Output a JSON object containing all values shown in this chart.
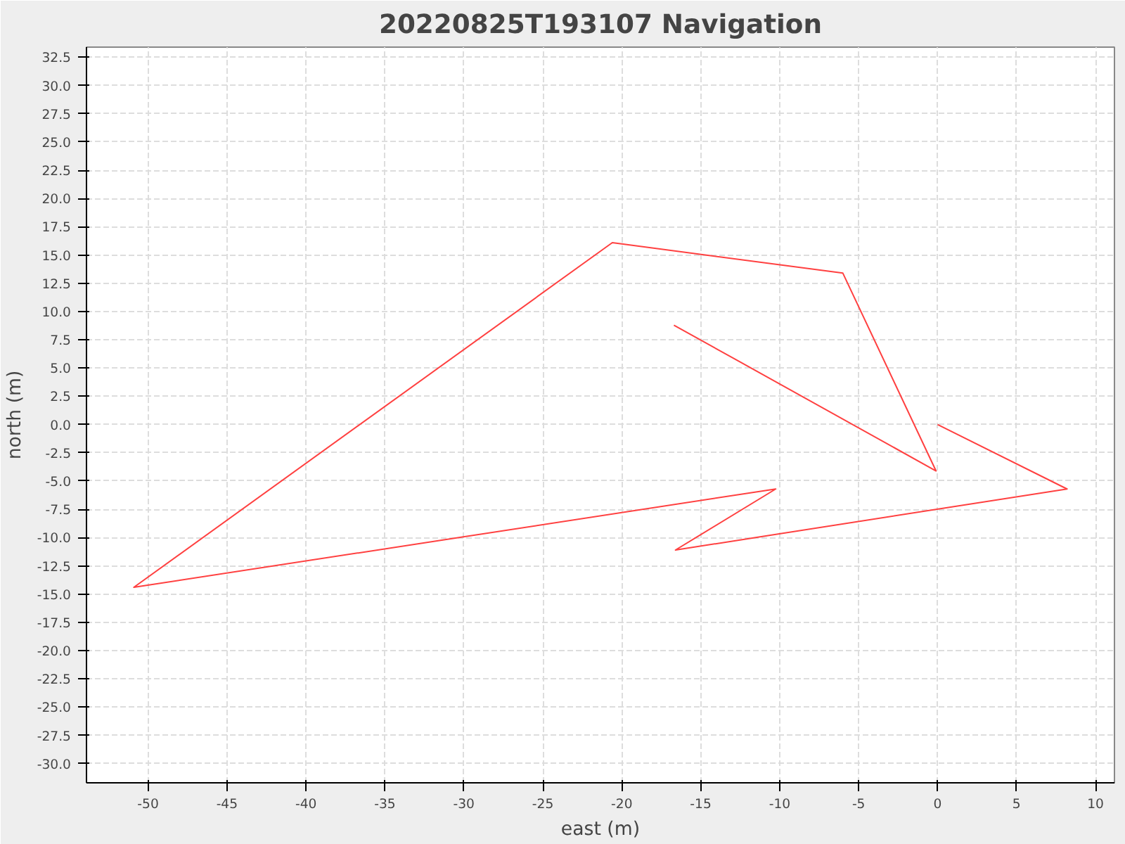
{
  "chart_data": {
    "type": "line",
    "title": "20220825T193107 Navigation",
    "xlabel": "east (m)",
    "ylabel": "north (m)",
    "series": [
      {
        "color": "#ff4040",
        "x": [
          0,
          8.2,
          -16.6,
          -10.25,
          -50.9,
          -20.6,
          -6.0,
          -0.1,
          -16.7
        ],
        "values": [
          0,
          -5.7,
          -11.1,
          -5.7,
          -14.4,
          16.1,
          13.4,
          -4.1,
          8.8
        ]
      }
    ],
    "xlim": [
      -53.9,
      11.2
    ],
    "ylim": [
      -31.7,
      33.4
    ],
    "xticks": [
      -50,
      -45,
      -40,
      -35,
      -30,
      -25,
      -20,
      -15,
      -10,
      -5,
      0,
      5,
      10
    ],
    "yticks": [
      {
        "value": 32.5,
        "label": "32.5"
      },
      {
        "value": 30,
        "label": "30.0"
      },
      {
        "value": 27.5,
        "label": "27.5"
      },
      {
        "value": 25,
        "label": "25.0"
      },
      {
        "value": 22.5,
        "label": "22.5"
      },
      {
        "value": 20,
        "label": "20.0"
      },
      {
        "value": 17.5,
        "label": "17.5"
      },
      {
        "value": 15,
        "label": "15.0"
      },
      {
        "value": 12.5,
        "label": "12.5"
      },
      {
        "value": 10,
        "label": "10.0"
      },
      {
        "value": 7.5,
        "label": "7.5"
      },
      {
        "value": 5,
        "label": "5.0"
      },
      {
        "value": 2.5,
        "label": "2.5"
      },
      {
        "value": 0,
        "label": "0.0"
      },
      {
        "value": -2.5,
        "label": "-2.5"
      },
      {
        "value": -5,
        "label": "-5.0"
      },
      {
        "value": -7.5,
        "label": "-7.5"
      },
      {
        "value": -10,
        "label": "-10.0"
      },
      {
        "value": -12.5,
        "label": "-12.5"
      },
      {
        "value": -15,
        "label": "-15.0"
      },
      {
        "value": -17.5,
        "label": "-17.5"
      },
      {
        "value": -20,
        "label": "-20.0"
      },
      {
        "value": -22.5,
        "label": "-22.5"
      },
      {
        "value": -25,
        "label": "-25.0"
      },
      {
        "value": -27.5,
        "label": "-27.5"
      },
      {
        "value": -30,
        "label": "-30.0"
      }
    ],
    "grid": true,
    "marker": "none",
    "line_style": "solid"
  }
}
